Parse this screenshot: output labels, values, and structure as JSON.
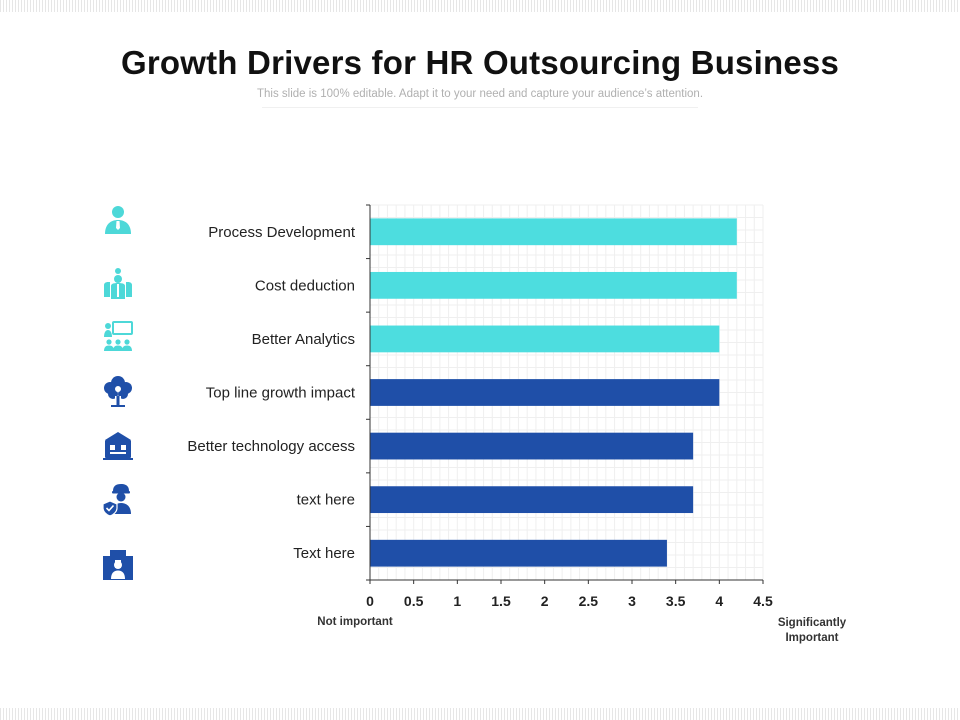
{
  "slide": {
    "title": "Growth Drivers for HR Outsourcing Business",
    "subtitle": "This slide is 100% editable. Adapt it to your need and capture your audience’s attention."
  },
  "axis_notes": {
    "left": "Not important",
    "right": "Significantly Important"
  },
  "icons": [
    {
      "name": "businessman-icon",
      "color": "#4DD8D8"
    },
    {
      "name": "team-leader-icon",
      "color": "#4DD8D8"
    },
    {
      "name": "presentation-audience-icon",
      "color": "#4DD8D8"
    },
    {
      "name": "growth-tree-icon",
      "color": "#1F4FA8"
    },
    {
      "name": "technology-building-icon",
      "color": "#1F4FA8"
    },
    {
      "name": "worker-shield-icon",
      "color": "#1F4FA8"
    },
    {
      "name": "puzzle-person-icon",
      "color": "#1F4FA8"
    }
  ],
  "chart_data": {
    "type": "bar",
    "orientation": "horizontal",
    "categories": [
      "Process Development",
      "Cost deduction",
      "Better Analytics",
      "Top line growth impact",
      "Better technology access",
      "text here",
      "Text here"
    ],
    "values": [
      4.2,
      4.2,
      4.0,
      4.0,
      3.7,
      3.7,
      3.4
    ],
    "bar_colors": [
      "#4DDDDF",
      "#4DDDDF",
      "#4DDDDF",
      "#1F4FA8",
      "#1F4FA8",
      "#1F4FA8",
      "#1F4FA8"
    ],
    "xlim": [
      0,
      4.5
    ],
    "x_ticks": [
      "0",
      "0.5",
      "1",
      "1.5",
      "2",
      "2.5",
      "3",
      "3.5",
      "4",
      "4.5"
    ],
    "grid": true,
    "legend": "none"
  }
}
